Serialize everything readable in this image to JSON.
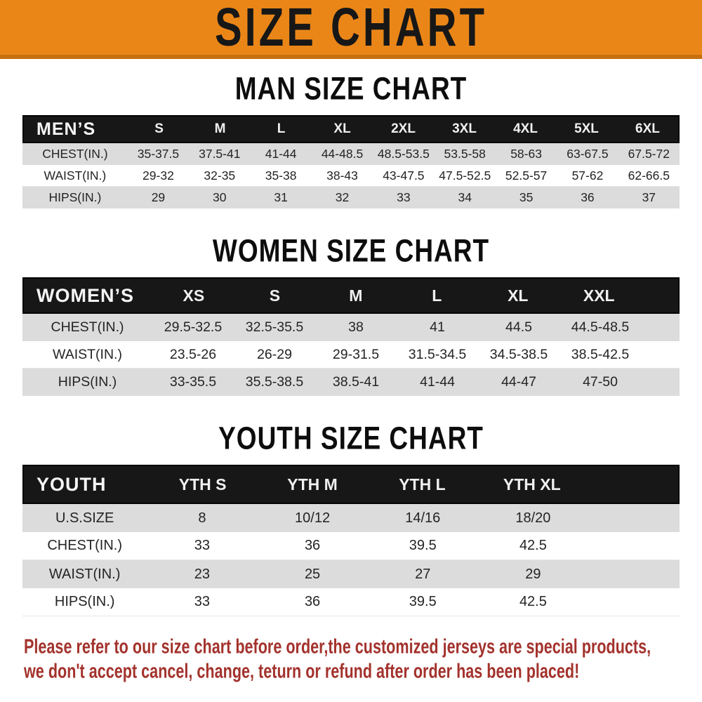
{
  "banner": {
    "title": "SIZE CHART",
    "bg_color": "#EA8618",
    "edge_color": "#C8700F",
    "text_color": "#171717"
  },
  "sections": [
    {
      "id": "men",
      "title": "MAN SIZE CHART",
      "header_label": "MEN’S",
      "columns": [
        "S",
        "M",
        "L",
        "XL",
        "2XL",
        "3XL",
        "4XL",
        "5XL",
        "6XL"
      ],
      "rows": [
        {
          "label": "CHEST(IN.)",
          "values": [
            "35-37.5",
            "37.5-41",
            "41-44",
            "44-48.5",
            "48.5-53.5",
            "53.5-58",
            "58-63",
            "63-67.5",
            "67.5-72"
          ]
        },
        {
          "label": "WAIST(IN.)",
          "values": [
            "29-32",
            "32-35",
            "35-38",
            "38-43",
            "43-47.5",
            "47.5-52.5",
            "52.5-57",
            "57-62",
            "62-66.5"
          ]
        },
        {
          "label": "HIPS(IN.)",
          "values": [
            "29",
            "30",
            "31",
            "32",
            "33",
            "34",
            "35",
            "36",
            "37"
          ]
        }
      ]
    },
    {
      "id": "women",
      "title": "WOMEN SIZE CHART",
      "header_label": "WOMEN’S",
      "columns": [
        "XS",
        "S",
        "M",
        "L",
        "XL",
        "XXL"
      ],
      "rows": [
        {
          "label": "CHEST(IN.)",
          "values": [
            "29.5-32.5",
            "32.5-35.5",
            "38",
            "41",
            "44.5",
            "44.5-48.5"
          ]
        },
        {
          "label": "WAIST(IN.)",
          "values": [
            "23.5-26",
            "26-29",
            "29-31.5",
            "31.5-34.5",
            "34.5-38.5",
            "38.5-42.5"
          ]
        },
        {
          "label": "HIPS(IN.)",
          "values": [
            "33-35.5",
            "35.5-38.5",
            "38.5-41",
            "41-44",
            "44-47",
            "47-50"
          ]
        }
      ]
    },
    {
      "id": "youth",
      "title": "YOUTH SIZE CHART",
      "header_label": "YOUTH",
      "columns": [
        "YTH S",
        "YTH M",
        "YTH L",
        "YTH XL"
      ],
      "rows": [
        {
          "label": "U.S.SIZE",
          "values": [
            "8",
            "10/12",
            "14/16",
            "18/20"
          ]
        },
        {
          "label": "CHEST(IN.)",
          "values": [
            "33",
            "36",
            "39.5",
            "42.5"
          ]
        },
        {
          "label": "WAIST(IN.)",
          "values": [
            "23",
            "25",
            "27",
            "29"
          ]
        },
        {
          "label": "HIPS(IN.)",
          "values": [
            "33",
            "36",
            "39.5",
            "42.5"
          ]
        }
      ]
    }
  ],
  "footnote": {
    "lines": [
      "Please refer to our size chart before order,the customized jerseys are special products,",
      "we don't accept cancel, change, teturn or refund after order has been placed!"
    ],
    "color": "#A3322C"
  },
  "colors": {
    "header_bar": "#171717",
    "header_text": "#FFFFFF",
    "row_stripe": "#DCDCDC",
    "row_text": "#242424"
  },
  "chart_data": [
    {
      "type": "table",
      "title": "MAN SIZE CHART",
      "columns": [
        "MEN’S",
        "S",
        "M",
        "L",
        "XL",
        "2XL",
        "3XL",
        "4XL",
        "5XL",
        "6XL"
      ],
      "rows": [
        [
          "CHEST(IN.)",
          "35-37.5",
          "37.5-41",
          "41-44",
          "44-48.5",
          "48.5-53.5",
          "53.5-58",
          "58-63",
          "63-67.5",
          "67.5-72"
        ],
        [
          "WAIST(IN.)",
          "29-32",
          "32-35",
          "35-38",
          "38-43",
          "43-47.5",
          "47.5-52.5",
          "52.5-57",
          "57-62",
          "62-66.5"
        ],
        [
          "HIPS(IN.)",
          "29",
          "30",
          "31",
          "32",
          "33",
          "34",
          "35",
          "36",
          "37"
        ]
      ]
    },
    {
      "type": "table",
      "title": "WOMEN SIZE CHART",
      "columns": [
        "WOMEN’S",
        "XS",
        "S",
        "M",
        "L",
        "XL",
        "XXL"
      ],
      "rows": [
        [
          "CHEST(IN.)",
          "29.5-32.5",
          "32.5-35.5",
          "38",
          "41",
          "44.5",
          "44.5-48.5"
        ],
        [
          "WAIST(IN.)",
          "23.5-26",
          "26-29",
          "29-31.5",
          "31.5-34.5",
          "34.5-38.5",
          "38.5-42.5"
        ],
        [
          "HIPS(IN.)",
          "33-35.5",
          "35.5-38.5",
          "38.5-41",
          "41-44",
          "44-47",
          "47-50"
        ]
      ]
    },
    {
      "type": "table",
      "title": "YOUTH SIZE CHART",
      "columns": [
        "YOUTH",
        "YTH S",
        "YTH M",
        "YTH L",
        "YTH XL"
      ],
      "rows": [
        [
          "U.S.SIZE",
          "8",
          "10/12",
          "14/16",
          "18/20"
        ],
        [
          "CHEST(IN.)",
          "33",
          "36",
          "39.5",
          "42.5"
        ],
        [
          "WAIST(IN.)",
          "23",
          "25",
          "27",
          "29"
        ],
        [
          "HIPS(IN.)",
          "33",
          "36",
          "39.5",
          "42.5"
        ]
      ]
    }
  ]
}
